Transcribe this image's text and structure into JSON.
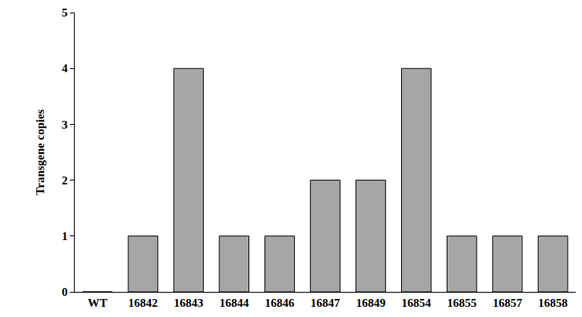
{
  "chart_data": {
    "type": "bar",
    "y_label": "Transgene copies",
    "categories": [
      "WT",
      "16842",
      "16843",
      "16844",
      "16846",
      "16847",
      "16849",
      "16854",
      "16855",
      "16857",
      "16858"
    ],
    "values": [
      0,
      1,
      4,
      1,
      1,
      2,
      2,
      4,
      1,
      1,
      1
    ],
    "color": "#a6a6a6",
    "ylim": [
      0,
      5
    ],
    "yticks": [
      0,
      1,
      2,
      3,
      4,
      5
    ],
    "grid": false
  }
}
